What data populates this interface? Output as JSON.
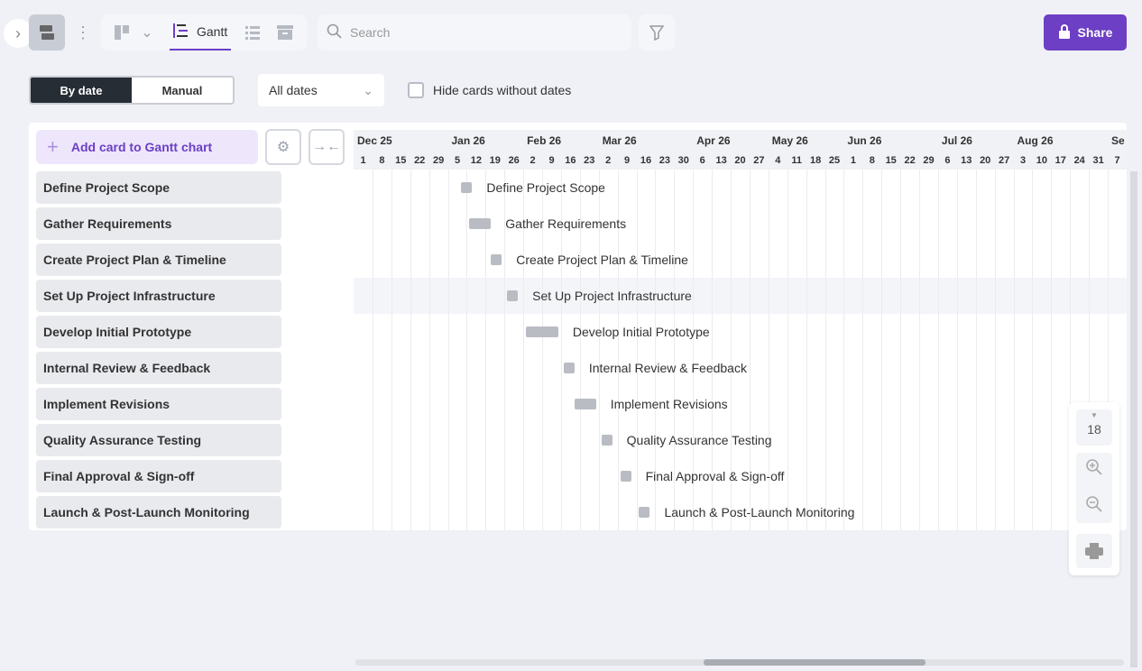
{
  "toolbar": {
    "view_active": "Gantt",
    "search_placeholder": "Search",
    "share_label": "Share"
  },
  "controls": {
    "sort_by_date": "By date",
    "sort_manual": "Manual",
    "date_filter": "All dates",
    "hide_no_dates": "Hide cards without dates",
    "hide_no_dates_checked": false
  },
  "gantt": {
    "add_card": "Add card to Gantt chart",
    "months": [
      {
        "label": "Dec 25",
        "week": 0
      },
      {
        "label": "Jan 26",
        "week": 5
      },
      {
        "label": "Feb 26",
        "week": 9
      },
      {
        "label": "Mar 26",
        "week": 13
      },
      {
        "label": "Apr 26",
        "week": 18
      },
      {
        "label": "May 26",
        "week": 22
      },
      {
        "label": "Jun 26",
        "week": 26
      },
      {
        "label": "Jul 26",
        "week": 31
      },
      {
        "label": "Aug 26",
        "week": 35
      },
      {
        "label": "Se",
        "week": 40
      }
    ],
    "weeks": [
      "1",
      "8",
      "15",
      "22",
      "29",
      "5",
      "12",
      "19",
      "26",
      "2",
      "9",
      "16",
      "23",
      "2",
      "9",
      "16",
      "23",
      "30",
      "6",
      "13",
      "20",
      "27",
      "4",
      "11",
      "18",
      "25",
      "1",
      "8",
      "15",
      "22",
      "29",
      "6",
      "13",
      "20",
      "27",
      "3",
      "10",
      "17",
      "24",
      "31",
      "7"
    ],
    "timeline_start": "2025-12-01",
    "tasks": [
      {
        "name": "Define Project Scope",
        "start": "2026-01-10",
        "end": "2026-01-14"
      },
      {
        "name": "Gather Requirements",
        "start": "2026-01-13",
        "end": "2026-01-21"
      },
      {
        "name": "Create Project Plan & Timeline",
        "start": "2026-01-21",
        "end": "2026-01-25"
      },
      {
        "name": "Set Up Project Infrastructure",
        "start": "2026-01-27",
        "end": "2026-01-31"
      },
      {
        "name": "Develop Initial Prototype",
        "start": "2026-02-03",
        "end": "2026-02-15"
      },
      {
        "name": "Internal Review & Feedback",
        "start": "2026-02-17",
        "end": "2026-02-21"
      },
      {
        "name": "Implement Revisions",
        "start": "2026-02-21",
        "end": "2026-03-01"
      },
      {
        "name": "Quality Assurance Testing",
        "start": "2026-03-03",
        "end": "2026-03-07"
      },
      {
        "name": "Final Approval & Sign-off",
        "start": "2026-03-10",
        "end": "2026-03-14"
      },
      {
        "name": "Launch & Post-Launch Monitoring",
        "start": "2026-03-17",
        "end": "2026-03-21"
      }
    ],
    "hovered_task": "Set Up Project Infrastructure"
  },
  "zoom": {
    "level": "18"
  },
  "colors": {
    "accent": "#6c3fc4",
    "bar": "#b9bcc3",
    "dark": "#262d34"
  }
}
